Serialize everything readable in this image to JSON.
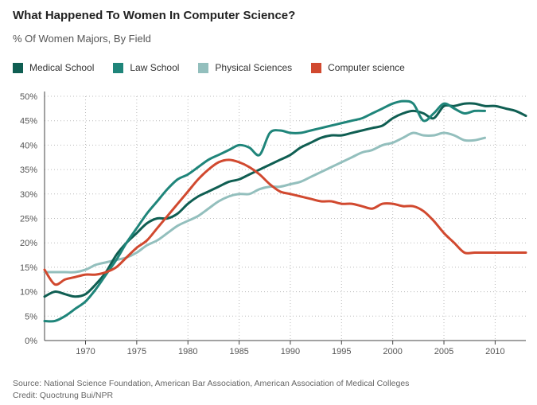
{
  "title": "What Happened To Women In Computer Science?",
  "subtitle": "% Of Women Majors, By Field",
  "source": "Source: National Science Foundation, American Bar Association, American Association of Medical Colleges",
  "credit": "Credit: Quoctrung Bui/NPR",
  "chart_data": {
    "type": "line",
    "xlim": [
      1966,
      2013
    ],
    "ylim": [
      0,
      50
    ],
    "xticks": [
      1970,
      1975,
      1980,
      1985,
      1990,
      1995,
      2000,
      2005,
      2010
    ],
    "xtick_labels": [
      "1970",
      "1975",
      "1980",
      "1985",
      "1990",
      "1995",
      "2000",
      "2005",
      "2010"
    ],
    "yticks": [
      0,
      5,
      10,
      15,
      20,
      25,
      30,
      35,
      40,
      45,
      50
    ],
    "ytick_labels": [
      "0%",
      "5%",
      "10%",
      "15%",
      "20%",
      "25%",
      "30%",
      "35%",
      "40%",
      "45%",
      "50%"
    ],
    "grid": true,
    "legend_position": "top-left",
    "series": [
      {
        "name": "Medical School",
        "color": "#0f5e52",
        "x": [
          1966,
          1967,
          1968,
          1969,
          1970,
          1971,
          1972,
          1973,
          1974,
          1975,
          1976,
          1977,
          1978,
          1979,
          1980,
          1981,
          1982,
          1983,
          1984,
          1985,
          1986,
          1987,
          1988,
          1989,
          1990,
          1991,
          1992,
          1993,
          1994,
          1995,
          1996,
          1997,
          1998,
          1999,
          2000,
          2001,
          2002,
          2003,
          2004,
          2005,
          2006,
          2007,
          2008,
          2009,
          2010,
          2011,
          2012,
          2013
        ],
        "values": [
          9,
          10,
          9.5,
          9,
          9.5,
          11.5,
          14,
          17.5,
          20,
          22,
          24,
          25,
          25,
          26,
          28,
          29.5,
          30.5,
          31.5,
          32.5,
          33,
          34,
          35,
          36,
          37,
          38,
          39.5,
          40.5,
          41.5,
          42,
          42,
          42.5,
          43,
          43.5,
          44,
          45.5,
          46.5,
          47,
          46.5,
          45.5,
          48,
          48,
          48.5,
          48.5,
          48,
          48,
          47.5,
          47,
          46
        ]
      },
      {
        "name": "Law School",
        "color": "#1f857a",
        "x": [
          1966,
          1967,
          1968,
          1969,
          1970,
          1971,
          1972,
          1973,
          1974,
          1975,
          1976,
          1977,
          1978,
          1979,
          1980,
          1981,
          1982,
          1983,
          1984,
          1985,
          1986,
          1987,
          1988,
          1989,
          1990,
          1991,
          1992,
          1993,
          1994,
          1995,
          1996,
          1997,
          1998,
          1999,
          2000,
          2001,
          2002,
          2003,
          2004,
          2005,
          2006,
          2007,
          2008,
          2009
        ],
        "values": [
          4,
          4,
          5,
          6.5,
          8,
          10.5,
          13.5,
          16.5,
          20,
          23,
          26,
          28.5,
          31,
          33,
          34,
          35.5,
          37,
          38,
          39,
          40,
          39.5,
          38,
          42.5,
          43,
          42.5,
          42.5,
          43,
          43.5,
          44,
          44.5,
          45,
          45.5,
          46.5,
          47.5,
          48.5,
          49,
          48.5,
          45,
          46.5,
          48.5,
          47.5,
          46.5,
          47,
          47
        ]
      },
      {
        "name": "Physical Sciences",
        "color": "#93bfbd",
        "x": [
          1966,
          1967,
          1968,
          1969,
          1970,
          1971,
          1972,
          1973,
          1974,
          1975,
          1976,
          1977,
          1978,
          1979,
          1980,
          1981,
          1982,
          1983,
          1984,
          1985,
          1986,
          1987,
          1988,
          1989,
          1990,
          1991,
          1992,
          1993,
          1994,
          1995,
          1996,
          1997,
          1998,
          1999,
          2000,
          2001,
          2002,
          2003,
          2004,
          2005,
          2006,
          2007,
          2008,
          2009
        ],
        "values": [
          14,
          14,
          14,
          14,
          14.5,
          15.5,
          16,
          16.5,
          17,
          18,
          19.5,
          20.5,
          22,
          23.5,
          24.5,
          25.5,
          27,
          28.5,
          29.5,
          30,
          30,
          31,
          31.5,
          31.5,
          32,
          32.5,
          33.5,
          34.5,
          35.5,
          36.5,
          37.5,
          38.5,
          39,
          40,
          40.5,
          41.5,
          42.5,
          42,
          42,
          42.5,
          42,
          41,
          41,
          41.5
        ]
      },
      {
        "name": "Computer science",
        "color": "#d1492f",
        "x": [
          1966,
          1967,
          1968,
          1969,
          1970,
          1971,
          1972,
          1973,
          1974,
          1975,
          1976,
          1977,
          1978,
          1979,
          1980,
          1981,
          1982,
          1983,
          1984,
          1985,
          1986,
          1987,
          1988,
          1989,
          1990,
          1991,
          1992,
          1993,
          1994,
          1995,
          1996,
          1997,
          1998,
          1999,
          2000,
          2001,
          2002,
          2003,
          2004,
          2005,
          2006,
          2007,
          2008,
          2009,
          2010,
          2011,
          2012,
          2013
        ],
        "values": [
          14.5,
          11.5,
          12.5,
          13,
          13.5,
          13.5,
          14,
          15,
          17,
          19,
          20.5,
          23,
          25.5,
          28,
          30.5,
          33,
          35,
          36.5,
          37,
          36.5,
          35.5,
          34,
          32,
          30.5,
          30,
          29.5,
          29,
          28.5,
          28.5,
          28,
          28,
          27.5,
          27,
          28,
          28,
          27.5,
          27.5,
          26.5,
          24.5,
          22,
          20,
          18,
          18,
          18,
          18,
          18,
          18,
          18
        ]
      }
    ]
  }
}
